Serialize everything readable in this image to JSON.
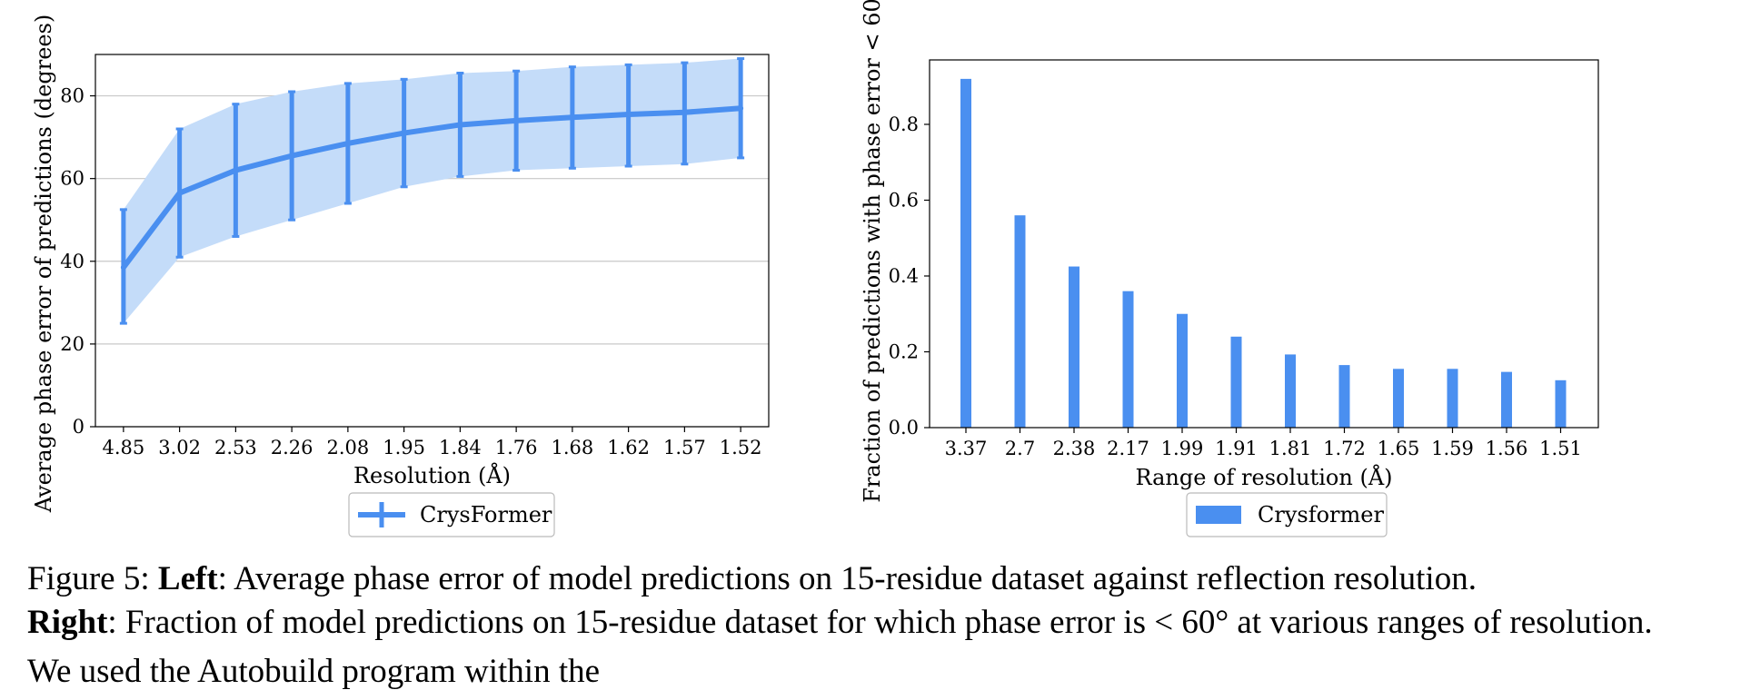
{
  "chart_data": [
    {
      "type": "line",
      "title": "",
      "xlabel": "Resolution (Å)",
      "ylabel": "Average phase error of predictions (degrees)",
      "categories": [
        "4.85",
        "3.02",
        "2.53",
        "2.26",
        "2.08",
        "1.95",
        "1.84",
        "1.76",
        "1.68",
        "1.62",
        "1.57",
        "1.52"
      ],
      "series": [
        {
          "name": "CrysFormer",
          "values": [
            38.5,
            56.5,
            62,
            65.5,
            68.5,
            71,
            73,
            74,
            74.8,
            75.5,
            76,
            77
          ],
          "error_lower": [
            25,
            41,
            46,
            50,
            54,
            58,
            60.5,
            62,
            62.5,
            63,
            63.5,
            65
          ],
          "error_upper": [
            52.5,
            72,
            78,
            81,
            83,
            84,
            85.5,
            86,
            87,
            87.5,
            88,
            89
          ]
        }
      ],
      "ylim": [
        0,
        90
      ],
      "yticks": [
        0,
        20,
        40,
        60,
        80
      ],
      "grid": "horizontal",
      "legend_position": "bottom-center",
      "color": "#4a8ff0",
      "band_color": "#c4dcf9"
    },
    {
      "type": "bar",
      "title": "",
      "xlabel": "Range of resolution (Å)",
      "ylabel": "Fraction of predictions with phase error < 60°",
      "categories": [
        "3.37",
        "2.7",
        "2.38",
        "2.17",
        "1.99",
        "1.91",
        "1.81",
        "1.72",
        "1.65",
        "1.59",
        "1.56",
        "1.51"
      ],
      "series": [
        {
          "name": "Crysformer",
          "values": [
            0.92,
            0.56,
            0.425,
            0.36,
            0.3,
            0.24,
            0.193,
            0.165,
            0.155,
            0.155,
            0.147,
            0.125
          ]
        }
      ],
      "ylim": [
        0,
        0.97
      ],
      "yticks": [
        "0.0",
        "0.2",
        "0.4",
        "0.6",
        "0.8"
      ],
      "grid": "none",
      "legend_position": "bottom-center",
      "color": "#4a8ff0"
    }
  ],
  "caption": {
    "figure_label": "Figure 5:",
    "left_label": "Left",
    "left_text": ": Average phase error of model predictions on 15-residue dataset against reflection resolution.",
    "right_label": "Right",
    "right_text": ": Fraction of model predictions on 15-residue dataset for which phase error is < 60° at various ranges of resolution."
  },
  "cut_text": "We used the Autobuild program within the"
}
